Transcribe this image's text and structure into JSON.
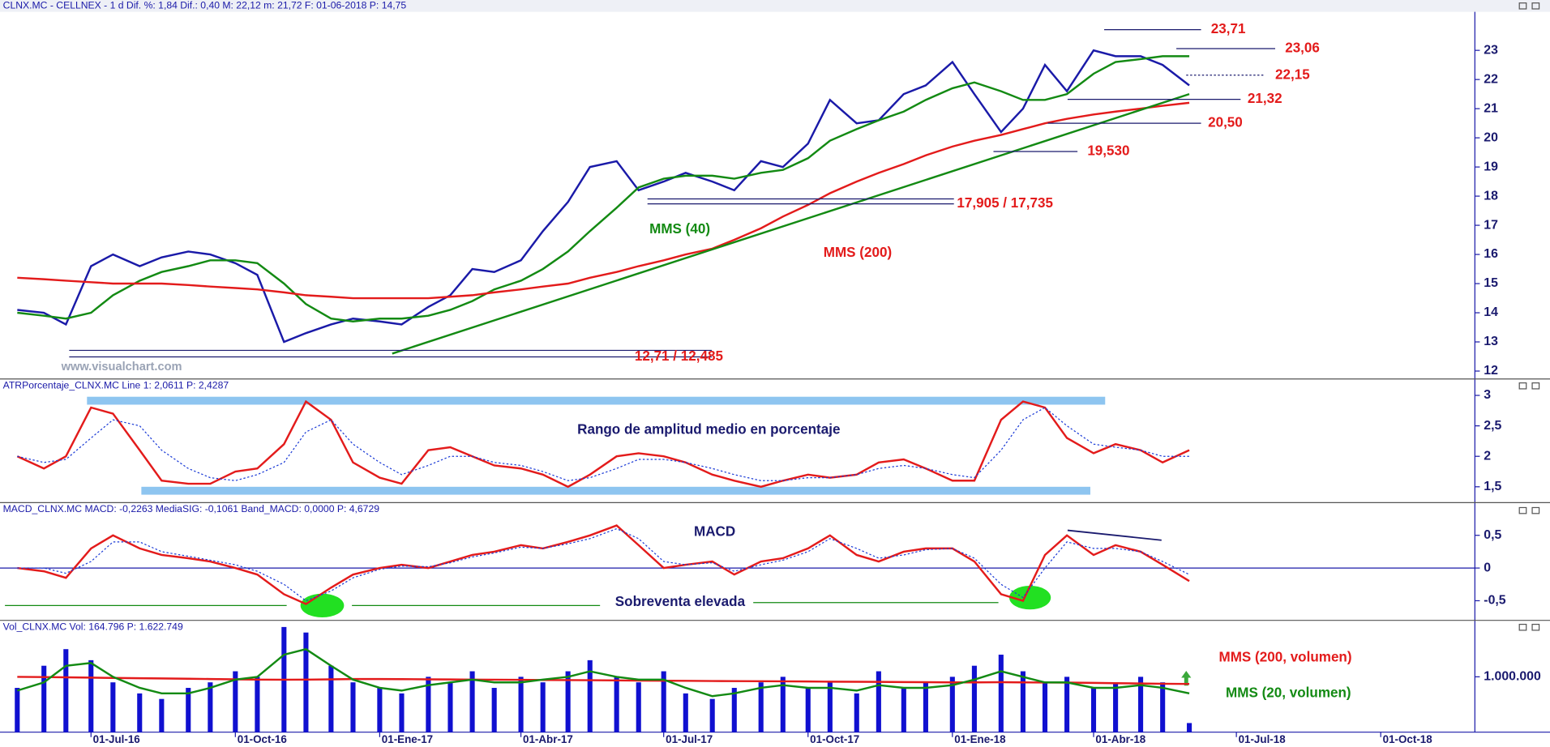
{
  "chart_data": [
    {
      "type": "line",
      "title": "CLNX.MC - CELLNEX - 1 d Dif. %: 1,84 Dif.: 0,40 M: 22,12 m: 21,72 F: 01-06-2018 P: 14,75",
      "x": [
        "2016-05-15",
        "2016-06-01",
        "2016-06-15",
        "2016-07-01",
        "2016-07-15",
        "2016-08-01",
        "2016-08-15",
        "2016-09-01",
        "2016-09-15",
        "2016-10-01",
        "2016-10-15",
        "2016-11-01",
        "2016-11-15",
        "2016-12-01",
        "2016-12-15",
        "2017-01-01",
        "2017-01-15",
        "2017-02-01",
        "2017-02-15",
        "2017-03-01",
        "2017-03-15",
        "2017-04-01",
        "2017-04-15",
        "2017-05-01",
        "2017-05-15",
        "2017-06-01",
        "2017-06-15",
        "2017-07-01",
        "2017-07-15",
        "2017-08-01",
        "2017-08-15",
        "2017-09-01",
        "2017-09-15",
        "2017-10-01",
        "2017-10-15",
        "2017-11-01",
        "2017-11-15",
        "2017-12-01",
        "2017-12-15",
        "2018-01-01",
        "2018-01-15",
        "2018-02-01",
        "2018-02-15",
        "2018-03-01",
        "2018-03-15",
        "2018-04-01",
        "2018-04-15",
        "2018-05-01",
        "2018-05-15",
        "2018-06-01"
      ],
      "series": [
        {
          "color": "#1a1aa8",
          "values": [
            14.1,
            14.0,
            13.6,
            15.6,
            16.0,
            15.6,
            15.9,
            16.1,
            16.0,
            15.7,
            15.3,
            13.0,
            13.3,
            13.6,
            13.8,
            13.7,
            13.6,
            14.2,
            14.6,
            15.5,
            15.4,
            15.8,
            16.8,
            17.8,
            19.0,
            19.2,
            18.2,
            18.5,
            18.8,
            18.5,
            18.2,
            19.2,
            19.0,
            19.8,
            21.3,
            20.5,
            20.6,
            21.5,
            21.8,
            22.6,
            21.5,
            20.2,
            21.0,
            22.5,
            21.6,
            23.0,
            22.8,
            22.8,
            22.5,
            21.8
          ]
        },
        {
          "name": "MMS (40)",
          "color": "#138a13",
          "values": [
            14.0,
            13.9,
            13.8,
            14.0,
            14.6,
            15.1,
            15.4,
            15.6,
            15.8,
            15.8,
            15.7,
            15.0,
            14.3,
            13.8,
            13.7,
            13.8,
            13.8,
            13.9,
            14.1,
            14.4,
            14.8,
            15.1,
            15.5,
            16.1,
            16.8,
            17.6,
            18.3,
            18.6,
            18.7,
            18.7,
            18.6,
            18.8,
            18.9,
            19.3,
            19.9,
            20.3,
            20.6,
            20.9,
            21.3,
            21.7,
            21.9,
            21.6,
            21.3,
            21.3,
            21.5,
            22.2,
            22.6,
            22.7,
            22.8,
            22.8
          ]
        },
        {
          "name": "MMS (200)",
          "color": "#e31b1b",
          "values": [
            15.2,
            15.15,
            15.1,
            15.05,
            15.0,
            15.0,
            15.0,
            14.95,
            14.9,
            14.85,
            14.8,
            14.7,
            14.6,
            14.55,
            14.5,
            14.5,
            14.5,
            14.5,
            14.55,
            14.6,
            14.7,
            14.8,
            14.9,
            15.0,
            15.2,
            15.4,
            15.6,
            15.8,
            16.0,
            16.2,
            16.5,
            16.9,
            17.3,
            17.7,
            18.1,
            18.5,
            18.8,
            19.1,
            19.4,
            19.7,
            19.9,
            20.1,
            20.3,
            20.5,
            20.65,
            20.8,
            20.9,
            21.0,
            21.1,
            21.2
          ]
        }
      ],
      "xlim": [
        "2016-05-04",
        "2018-11-30"
      ],
      "ylim": [
        11.73,
        24.32
      ],
      "yticks": [
        12,
        13,
        14,
        15,
        16,
        17,
        18,
        19,
        20,
        21,
        22,
        23
      ],
      "levels": [
        {
          "label": "23,71",
          "values": [
            23.71
          ]
        },
        {
          "label": "23,06",
          "values": [
            23.06
          ]
        },
        {
          "label": "22,15",
          "values": [
            22.15
          ],
          "style": "dotted"
        },
        {
          "label": "21,32",
          "values": [
            21.32
          ]
        },
        {
          "label": "20,50",
          "values": [
            20.5
          ]
        },
        {
          "label": "19,530",
          "values": [
            19.53
          ]
        },
        {
          "label": "17,905 / 17,735",
          "values": [
            17.905,
            17.735
          ]
        },
        {
          "label": "12,71 / 12,485",
          "values": [
            12.71,
            12.485
          ]
        }
      ],
      "trendline": {
        "x": [
          "2017-01-09",
          "2018-06-01"
        ],
        "values": [
          12.6,
          21.5
        ],
        "color": "#138a13"
      },
      "watermark": "www.visualchart.com"
    },
    {
      "type": "line",
      "title": "ATRPorcentaje_CLNX.MC Line 1: 2,0611 P: 2,4287",
      "x": [
        "2016-05-15",
        "2016-06-01",
        "2016-06-15",
        "2016-07-01",
        "2016-07-15",
        "2016-08-01",
        "2016-08-15",
        "2016-09-01",
        "2016-09-15",
        "2016-10-01",
        "2016-10-15",
        "2016-11-01",
        "2016-11-15",
        "2016-12-01",
        "2016-12-15",
        "2017-01-01",
        "2017-01-15",
        "2017-02-01",
        "2017-02-15",
        "2017-03-01",
        "2017-03-15",
        "2017-04-01",
        "2017-04-15",
        "2017-05-01",
        "2017-05-15",
        "2017-06-01",
        "2017-06-15",
        "2017-07-01",
        "2017-07-15",
        "2017-08-01",
        "2017-08-15",
        "2017-09-01",
        "2017-09-15",
        "2017-10-01",
        "2017-10-15",
        "2017-11-01",
        "2017-11-15",
        "2017-12-01",
        "2017-12-15",
        "2018-01-01",
        "2018-01-15",
        "2018-02-01",
        "2018-02-15",
        "2018-03-01",
        "2018-03-15",
        "2018-04-01",
        "2018-04-15",
        "2018-05-01",
        "2018-05-15",
        "2018-06-01"
      ],
      "series": [
        {
          "color": "#e31b1b",
          "values": [
            2.0,
            1.8,
            2.0,
            2.8,
            2.7,
            2.1,
            1.6,
            1.55,
            1.55,
            1.75,
            1.8,
            2.2,
            2.9,
            2.6,
            1.9,
            1.65,
            1.55,
            2.1,
            2.15,
            2.0,
            1.85,
            1.8,
            1.7,
            1.5,
            1.7,
            2.0,
            2.05,
            2.0,
            1.9,
            1.7,
            1.6,
            1.5,
            1.6,
            1.7,
            1.65,
            1.7,
            1.9,
            1.95,
            1.8,
            1.6,
            1.6,
            2.6,
            2.9,
            2.8,
            2.3,
            2.05,
            2.2,
            2.1,
            1.9,
            2.1
          ]
        },
        {
          "color": "#1a3ad6",
          "style": "dotted",
          "values": [
            2.0,
            1.9,
            1.95,
            2.3,
            2.6,
            2.5,
            2.1,
            1.8,
            1.65,
            1.6,
            1.7,
            1.9,
            2.4,
            2.6,
            2.2,
            1.9,
            1.7,
            1.85,
            2.0,
            2.0,
            1.9,
            1.85,
            1.75,
            1.6,
            1.65,
            1.8,
            1.95,
            1.95,
            1.9,
            1.8,
            1.7,
            1.6,
            1.6,
            1.65,
            1.65,
            1.7,
            1.8,
            1.85,
            1.8,
            1.7,
            1.65,
            2.1,
            2.6,
            2.8,
            2.5,
            2.2,
            2.15,
            2.1,
            2.0,
            2.0
          ]
        }
      ],
      "xlim": [
        "2016-05-04",
        "2018-11-30"
      ],
      "ylim": [
        1.24,
        3.27
      ],
      "yticks": [
        {
          "value": 1.5,
          "label": "1,5"
        },
        2,
        {
          "value": 2.5,
          "label": "2,5"
        },
        3
      ],
      "annotations": [
        "Rango de amplitud medio en porcentaje"
      ]
    },
    {
      "type": "line",
      "title": "MACD_CLNX.MC MACD: -0,2263 MediaSIG: -0,1061 Band_MACD: 0,0000 P: 4,6729",
      "x": [
        "2016-05-15",
        "2016-06-01",
        "2016-06-15",
        "2016-07-01",
        "2016-07-15",
        "2016-08-01",
        "2016-08-15",
        "2016-09-01",
        "2016-09-15",
        "2016-10-01",
        "2016-10-15",
        "2016-11-01",
        "2016-11-15",
        "2016-12-01",
        "2016-12-15",
        "2017-01-01",
        "2017-01-15",
        "2017-02-01",
        "2017-02-15",
        "2017-03-01",
        "2017-03-15",
        "2017-04-01",
        "2017-04-15",
        "2017-05-01",
        "2017-05-15",
        "2017-06-01",
        "2017-06-15",
        "2017-07-01",
        "2017-07-15",
        "2017-08-01",
        "2017-08-15",
        "2017-09-01",
        "2017-09-15",
        "2017-10-01",
        "2017-10-15",
        "2017-11-01",
        "2017-11-15",
        "2017-12-01",
        "2017-12-15",
        "2018-01-01",
        "2018-01-15",
        "2018-02-01",
        "2018-02-15",
        "2018-03-01",
        "2018-03-15",
        "2018-04-01",
        "2018-04-15",
        "2018-05-01",
        "2018-05-15",
        "2018-06-01"
      ],
      "series": [
        {
          "color": "#e31b1b",
          "values": [
            0.0,
            -0.05,
            -0.15,
            0.3,
            0.5,
            0.3,
            0.2,
            0.15,
            0.1,
            0.0,
            -0.1,
            -0.4,
            -0.55,
            -0.3,
            -0.1,
            0.0,
            0.05,
            0.0,
            0.1,
            0.2,
            0.25,
            0.35,
            0.3,
            0.4,
            0.5,
            0.65,
            0.35,
            0.0,
            0.05,
            0.1,
            -0.1,
            0.1,
            0.15,
            0.3,
            0.5,
            0.2,
            0.1,
            0.25,
            0.3,
            0.3,
            0.1,
            -0.4,
            -0.5,
            0.2,
            0.5,
            0.2,
            0.35,
            0.25,
            0.05,
            -0.2
          ]
        },
        {
          "color": "#1a3ad6",
          "style": "dotted",
          "values": [
            0.0,
            0.0,
            -0.08,
            0.1,
            0.4,
            0.4,
            0.25,
            0.18,
            0.12,
            0.05,
            -0.05,
            -0.25,
            -0.5,
            -0.35,
            -0.15,
            -0.02,
            0.03,
            0.02,
            0.08,
            0.17,
            0.23,
            0.32,
            0.3,
            0.37,
            0.45,
            0.6,
            0.45,
            0.1,
            0.05,
            0.08,
            -0.05,
            0.05,
            0.12,
            0.25,
            0.45,
            0.3,
            0.15,
            0.2,
            0.28,
            0.3,
            0.15,
            -0.25,
            -0.45,
            0.0,
            0.4,
            0.3,
            0.3,
            0.25,
            0.1,
            -0.1
          ]
        }
      ],
      "xlim": [
        "2016-05-04",
        "2018-11-30"
      ],
      "ylim": [
        -0.8,
        1.0
      ],
      "yticks": [
        {
          "value": -0.5,
          "label": "-0,5"
        },
        0,
        {
          "value": 0.5,
          "label": "0,5"
        }
      ],
      "hlines": [
        0
      ],
      "annotations": [
        "MACD",
        "Sobreventa elevada"
      ]
    },
    {
      "type": "bar",
      "title": "Vol_CLNX.MC Vol: 164.796 P: 1.622.749",
      "x": [
        "2016-05-15",
        "2016-06-01",
        "2016-06-15",
        "2016-07-01",
        "2016-07-15",
        "2016-08-01",
        "2016-08-15",
        "2016-09-01",
        "2016-09-15",
        "2016-10-01",
        "2016-10-15",
        "2016-11-01",
        "2016-11-15",
        "2016-12-01",
        "2016-12-15",
        "2017-01-01",
        "2017-01-15",
        "2017-02-01",
        "2017-02-15",
        "2017-03-01",
        "2017-03-15",
        "2017-04-01",
        "2017-04-15",
        "2017-05-01",
        "2017-05-15",
        "2017-06-01",
        "2017-06-15",
        "2017-07-01",
        "2017-07-15",
        "2017-08-01",
        "2017-08-15",
        "2017-09-01",
        "2017-09-15",
        "2017-10-01",
        "2017-10-15",
        "2017-11-01",
        "2017-11-15",
        "2017-12-01",
        "2017-12-15",
        "2018-01-01",
        "2018-01-15",
        "2018-02-01",
        "2018-02-15",
        "2018-03-01",
        "2018-03-15",
        "2018-04-01",
        "2018-04-15",
        "2018-05-01",
        "2018-05-15",
        "2018-06-01"
      ],
      "series": [
        {
          "color": "#1010d0",
          "values": [
            800000,
            1200000,
            1500000,
            1300000,
            900000,
            700000,
            600000,
            800000,
            900000,
            1100000,
            1000000,
            1900000,
            1800000,
            1200000,
            900000,
            800000,
            700000,
            1000000,
            900000,
            1100000,
            800000,
            1000000,
            900000,
            1100000,
            1300000,
            1000000,
            900000,
            1100000,
            700000,
            600000,
            800000,
            900000,
            1000000,
            800000,
            900000,
            700000,
            1100000,
            800000,
            900000,
            1000000,
            1200000,
            1400000,
            1100000,
            900000,
            1000000,
            800000,
            900000,
            1000000,
            900000,
            164796
          ]
        },
        {
          "name": "MMS (200, volumen)",
          "color": "#e31b1b",
          "values": [
            1000000,
            995000,
            990000,
            985000,
            980000,
            975000,
            970000,
            965000,
            960000,
            955000,
            950000,
            948000,
            950000,
            955000,
            960000,
            960000,
            958000,
            955000,
            952000,
            950000,
            948000,
            945000,
            942000,
            940000,
            938000,
            935000,
            932000,
            930000,
            928000,
            925000,
            922000,
            920000,
            918000,
            915000,
            912000,
            910000,
            908000,
            905000,
            902000,
            900000,
            900000,
            902000,
            900000,
            898000,
            895000,
            890000,
            885000,
            880000,
            875000,
            870000
          ]
        },
        {
          "name": "MMS (20, volumen)",
          "color": "#138a13",
          "values": [
            750000,
            900000,
            1200000,
            1250000,
            1000000,
            800000,
            700000,
            700000,
            800000,
            950000,
            1000000,
            1400000,
            1500000,
            1200000,
            950000,
            800000,
            750000,
            850000,
            900000,
            950000,
            900000,
            900000,
            950000,
            1000000,
            1100000,
            1000000,
            950000,
            950000,
            800000,
            650000,
            700000,
            800000,
            850000,
            800000,
            800000,
            750000,
            850000,
            800000,
            800000,
            850000,
            950000,
            1100000,
            1000000,
            900000,
            900000,
            800000,
            800000,
            850000,
            800000,
            700000
          ]
        }
      ],
      "xlim": [
        "2016-05-04",
        "2018-11-30"
      ],
      "ylim": [
        0,
        2020000
      ],
      "yticks": [
        {
          "value": 1000000,
          "label": "1.000.000"
        }
      ],
      "xticks": [
        {
          "value": "2016-07-01",
          "label": "01-Jul-16"
        },
        {
          "value": "2016-10-01",
          "label": "01-Oct-16"
        },
        {
          "value": "2017-01-01",
          "label": "01-Ene-17"
        },
        {
          "value": "2017-04-01",
          "label": "01-Abr-17"
        },
        {
          "value": "2017-07-01",
          "label": "01-Jul-17"
        },
        {
          "value": "2017-10-01",
          "label": "01-Oct-17"
        },
        {
          "value": "2018-01-01",
          "label": "01-Ene-18"
        },
        {
          "value": "2018-04-01",
          "label": "01-Abr-18"
        },
        {
          "value": "2018-07-01",
          "label": "01-Jul-18"
        },
        {
          "value": "2018-10-01",
          "label": "01-Oct-18"
        }
      ]
    }
  ]
}
